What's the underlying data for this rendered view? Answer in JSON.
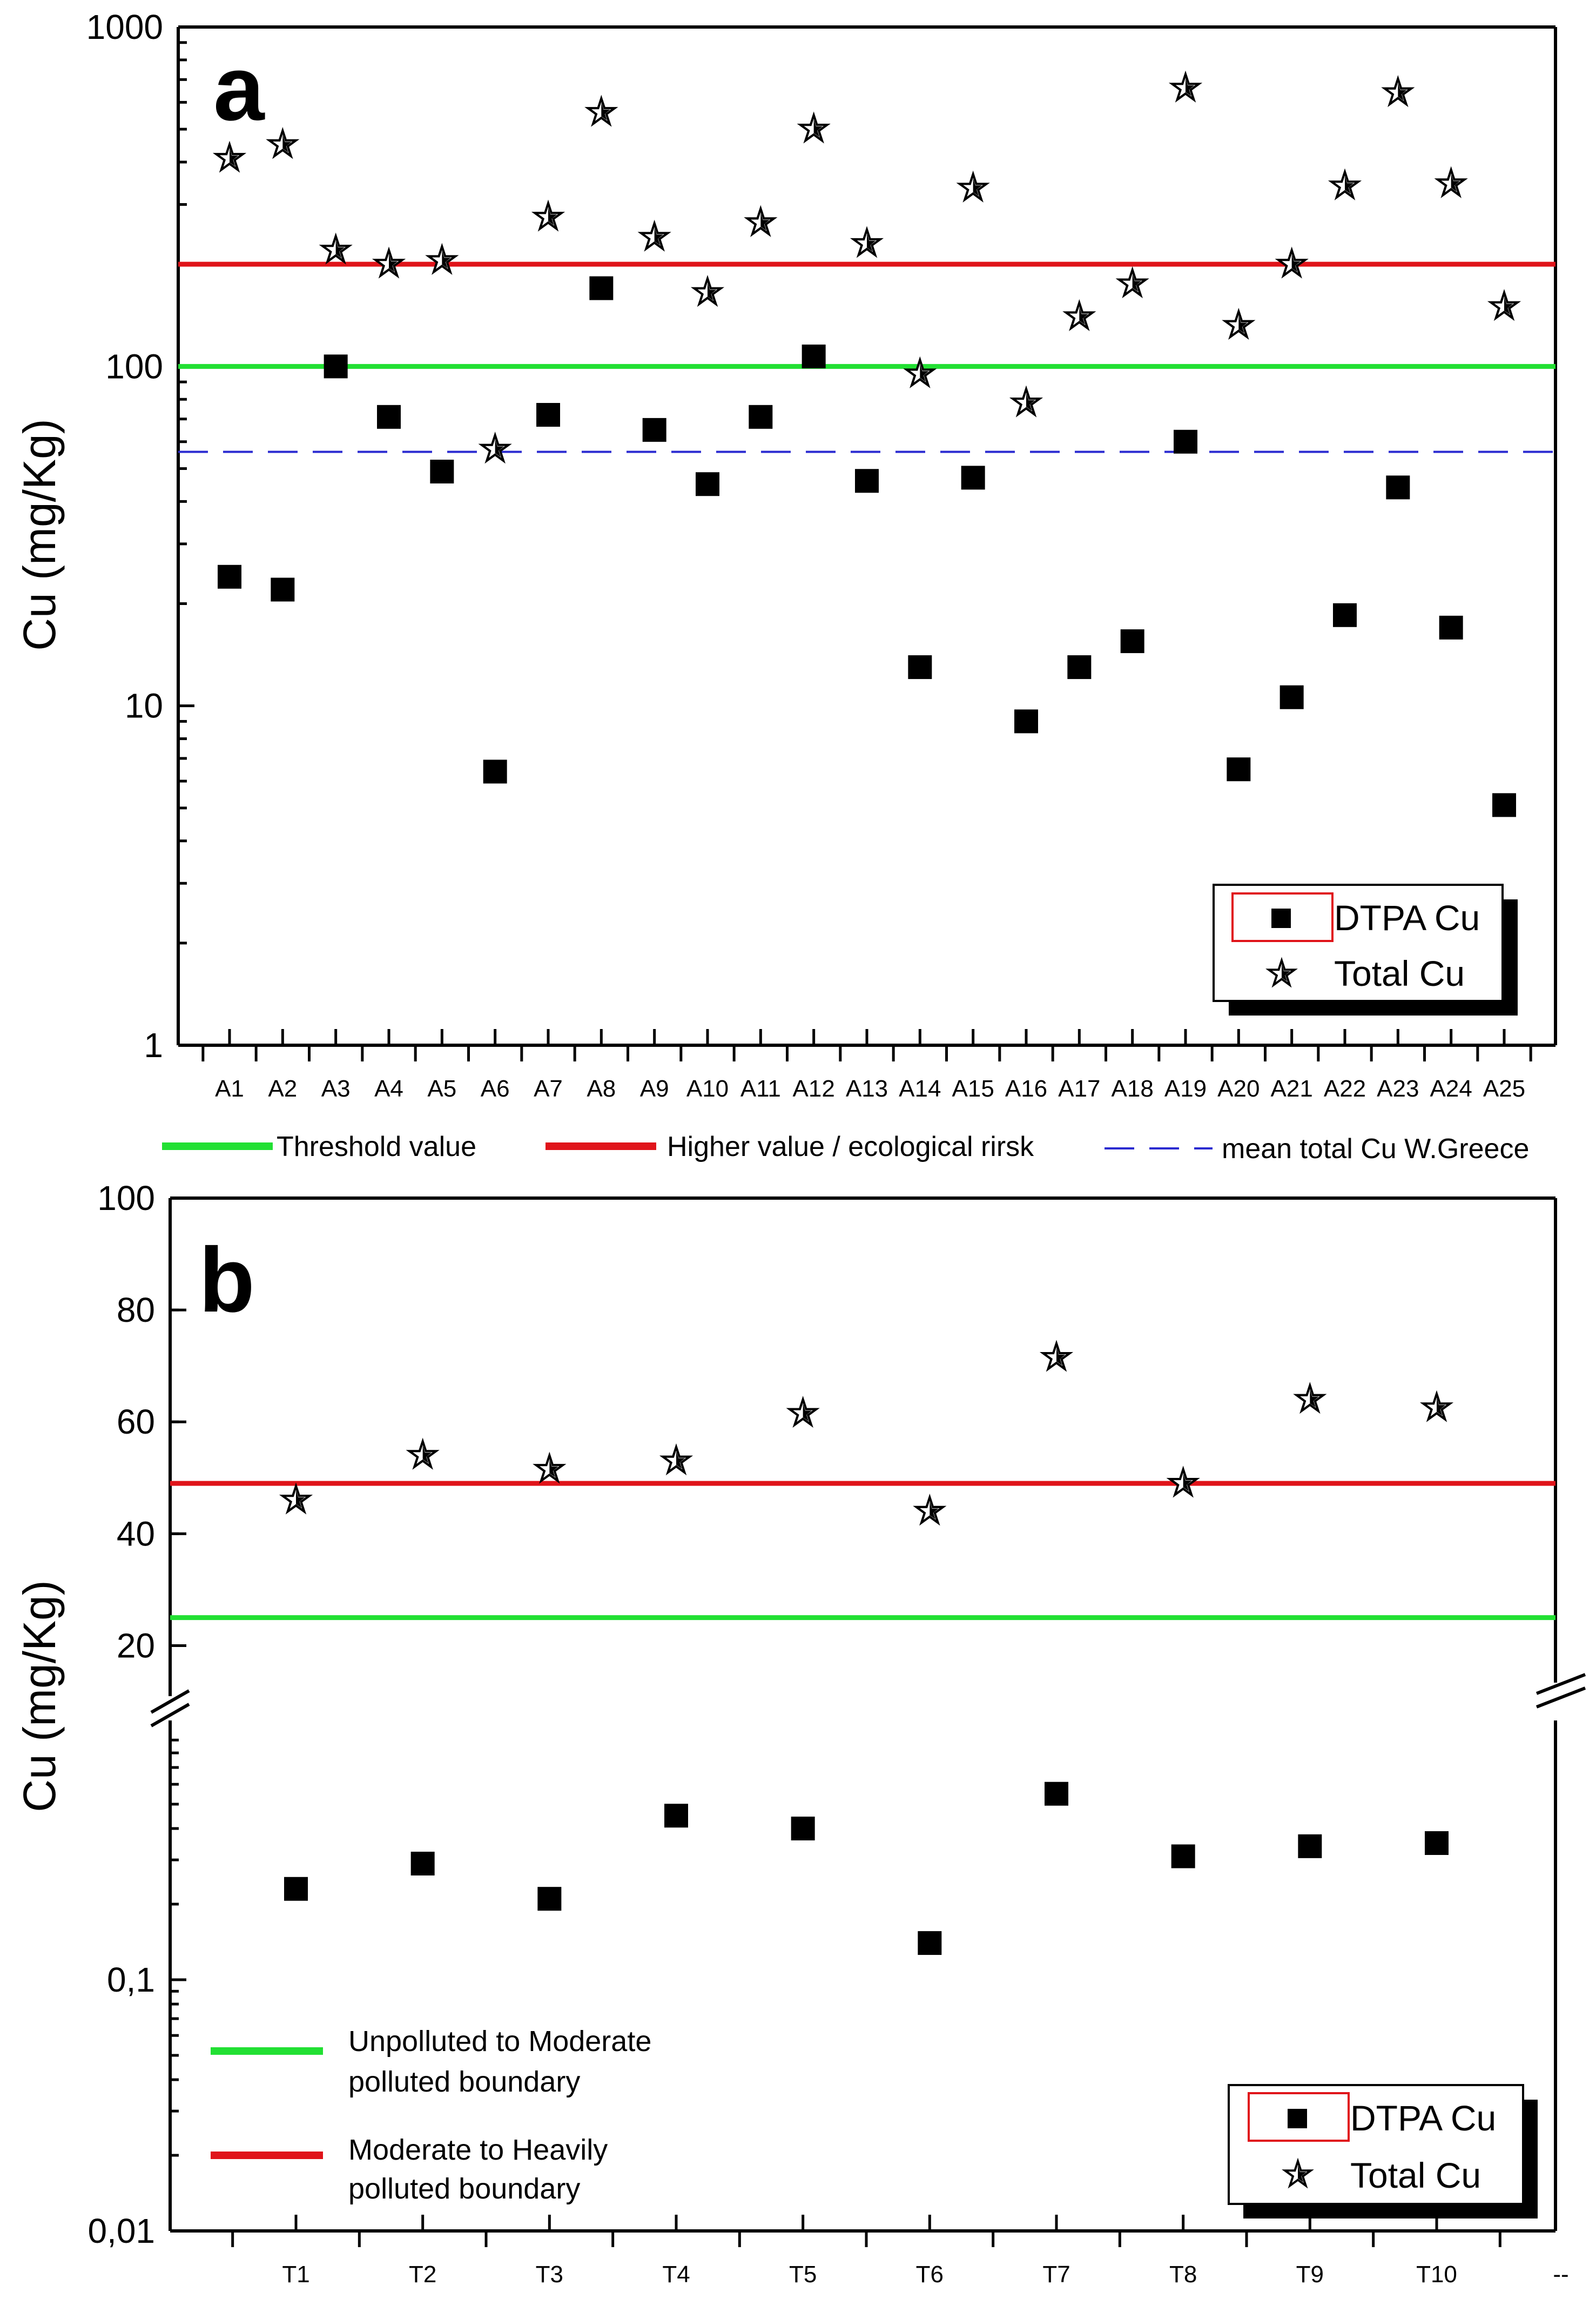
{
  "chart_data": [
    {
      "type": "scatter",
      "panel": "a",
      "yscale": "log",
      "ylabel": "Cu (mg/Kg)",
      "ylim": [
        1,
        1000
      ],
      "yticks": [
        "1",
        "10",
        "100",
        "1000"
      ],
      "categories": [
        "A1",
        "A2",
        "A3",
        "A4",
        "A5",
        "A6",
        "A7",
        "A8",
        "A9",
        "A10",
        "A11",
        "A12",
        "A13",
        "A14",
        "A15",
        "A16",
        "A17",
        "A18",
        "A19",
        "A20",
        "A21",
        "A22",
        "A23",
        "A24",
        "A25"
      ],
      "series": [
        {
          "name": "DTPA Cu",
          "marker": "square",
          "values": [
            24,
            22,
            100,
            71,
            49,
            6.4,
            72,
            170,
            65,
            45,
            71,
            107,
            46,
            13,
            47,
            9,
            13,
            15.5,
            60,
            6.5,
            10.6,
            18.5,
            44,
            17,
            5.1
          ]
        },
        {
          "name": "Total Cu",
          "marker": "star",
          "values": [
            410,
            450,
            220,
            200,
            205,
            57,
            275,
            560,
            240,
            165,
            265,
            500,
            230,
            95,
            335,
            78,
            140,
            175,
            660,
            132,
            200,
            340,
            640,
            345,
            150
          ]
        }
      ],
      "reference_lines": [
        {
          "name": "Threshold value",
          "value": 100,
          "color": "#22e033",
          "style": "solid"
        },
        {
          "name": "Higher value / ecological rirsk",
          "value": 200,
          "color": "#e0141a",
          "style": "solid"
        },
        {
          "name": "mean total Cu W.Greece",
          "value": 56,
          "color": "#2a2ad0",
          "style": "dashed"
        }
      ],
      "legend": {
        "position": "bottom-right",
        "entries": [
          "DTPA Cu",
          "Total Cu"
        ]
      }
    },
    {
      "type": "scatter",
      "panel": "b",
      "ylabel": "Cu (mg/Kg)",
      "broken_axis": true,
      "upper": {
        "yscale": "linear",
        "ylim": [
          10,
          100
        ],
        "yticks": [
          "20",
          "40",
          "60",
          "80",
          "100"
        ]
      },
      "lower": {
        "yscale": "log",
        "ylim": [
          0.01,
          1
        ],
        "yticks": [
          "0,01",
          "0,1"
        ]
      },
      "categories": [
        "T1",
        "T2",
        "T3",
        "T4",
        "T5",
        "T6",
        "T7",
        "T8",
        "T9",
        "T10"
      ],
      "extra_tick_label": "--",
      "series": [
        {
          "name": "DTPA Cu",
          "marker": "square",
          "segment": "lower",
          "values": [
            0.23,
            0.29,
            0.21,
            0.45,
            0.4,
            0.14,
            0.55,
            0.31,
            0.34,
            0.35
          ]
        },
        {
          "name": "Total Cu",
          "marker": "star",
          "segment": "upper",
          "values": [
            46,
            54,
            51.5,
            53,
            61.5,
            44,
            71.5,
            49,
            64,
            62.5
          ]
        }
      ],
      "reference_lines": [
        {
          "name": "Unpolluted to Moderate polluted boundary",
          "label_lines": [
            "Unpolluted to Moderate",
            "polluted boundary"
          ],
          "value": 25,
          "color": "#22e033",
          "style": "solid"
        },
        {
          "name": "Moderate to Heavily polluted boundary",
          "label_lines": [
            "Moderate to Heavily",
            "polluted boundary"
          ],
          "value": 49,
          "color": "#e0141a",
          "style": "solid"
        }
      ],
      "legend": {
        "position": "bottom-right",
        "entries": [
          "DTPA Cu",
          "Total Cu"
        ]
      }
    }
  ]
}
